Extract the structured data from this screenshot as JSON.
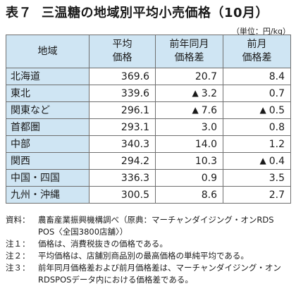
{
  "title": {
    "number": "表７",
    "text": "三温糖の地域別平均小売価格（10月）"
  },
  "unit": "（単位：円/kg）",
  "table": {
    "headers": {
      "region": "地域",
      "price_line1": "平均",
      "price_line2": "価格",
      "yoy_line1": "前年同月",
      "yoy_line2": "価格差",
      "mom_line1": "前月",
      "mom_line2": "価格差"
    },
    "rows": [
      {
        "region": "北海道",
        "price": "369.6",
        "yoy": "20.7",
        "yoy_tri": "",
        "mom": "8.4",
        "mom_tri": ""
      },
      {
        "region": "東北",
        "price": "339.6",
        "yoy": "3.2",
        "yoy_tri": "▲",
        "mom": "0.7",
        "mom_tri": ""
      },
      {
        "region": "関東など",
        "price": "296.1",
        "yoy": "7.6",
        "yoy_tri": "▲",
        "mom": "0.5",
        "mom_tri": "▲"
      },
      {
        "region": "首都圏",
        "price": "293.1",
        "yoy": "3.0",
        "yoy_tri": "",
        "mom": "0.8",
        "mom_tri": ""
      },
      {
        "region": "中部",
        "price": "340.3",
        "yoy": "14.0",
        "yoy_tri": "",
        "mom": "1.2",
        "mom_tri": ""
      },
      {
        "region": "関西",
        "price": "294.2",
        "yoy": "10.3",
        "yoy_tri": "",
        "mom": "0.4",
        "mom_tri": "▲"
      },
      {
        "region": "中国・四国",
        "price": "336.3",
        "yoy": "0.9",
        "yoy_tri": "",
        "mom": "3.5",
        "mom_tri": ""
      },
      {
        "region": "九州・沖縄",
        "price": "300.5",
        "yoy": "8.6",
        "yoy_tri": "",
        "mom": "2.7",
        "mom_tri": ""
      }
    ]
  },
  "notes": [
    {
      "label": "資料：",
      "text": "農畜産業振興機構調べ（原典：マーチャンダイジング・オンRDS POS〈全国3800店舗〉）"
    },
    {
      "label": "注１：",
      "text": "価格は、消費税抜きの価格である。"
    },
    {
      "label": "注２：",
      "text": "平均価格は、店舗別商品別の最高価格の単純平均である。"
    },
    {
      "label": "注３：",
      "text": "前年同月価格差および前月価格差は、マーチャンダイジング・オンRDSPOSデータ内における価格差である。"
    }
  ],
  "colors": {
    "header_bg": "#cfe5f3",
    "border": "#6f6f6f"
  }
}
